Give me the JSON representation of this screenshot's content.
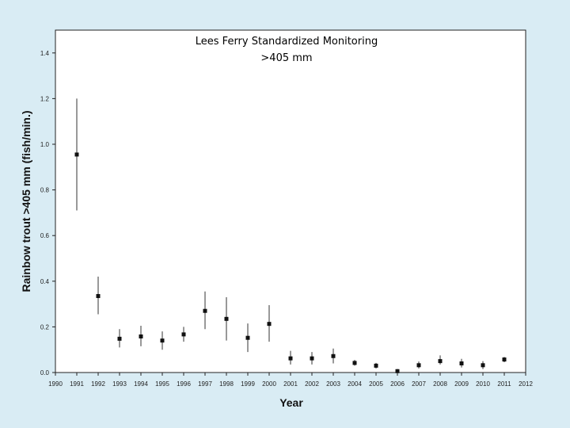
{
  "chart_data": {
    "type": "scatter",
    "title": "Lees Ferry Standardized Monitoring",
    "subtitle": ">405 mm",
    "xlabel": "Year",
    "ylabel": "Rainbow trout >405 mm (fish/min.)",
    "xlim": [
      1990,
      2012
    ],
    "ylim": [
      0,
      1.5
    ],
    "x_ticks": [
      "1990",
      "1991",
      "1992",
      "1993",
      "1994",
      "1995",
      "1996",
      "1997",
      "1998",
      "1999",
      "2000",
      "2001",
      "2002",
      "2003",
      "2004",
      "2005",
      "2006",
      "2007",
      "2008",
      "2009",
      "2010",
      "2011",
      "2012"
    ],
    "y_ticks": [
      "0.0",
      "0.2",
      "0.4",
      "0.6",
      "0.8",
      "1.0",
      "1.2",
      "1.4"
    ],
    "grid": false,
    "legend": "none",
    "series": [
      {
        "marker": "square",
        "color": "#111111",
        "points": [
          {
            "x": 1991,
            "y": 0.955,
            "low": 0.71,
            "high": 1.2
          },
          {
            "x": 1992,
            "y": 0.335,
            "low": 0.255,
            "high": 0.42
          },
          {
            "x": 1993,
            "y": 0.148,
            "low": 0.11,
            "high": 0.19
          },
          {
            "x": 1994,
            "y": 0.158,
            "low": 0.115,
            "high": 0.205
          },
          {
            "x": 1995,
            "y": 0.14,
            "low": 0.1,
            "high": 0.18
          },
          {
            "x": 1996,
            "y": 0.167,
            "low": 0.135,
            "high": 0.2
          },
          {
            "x": 1997,
            "y": 0.27,
            "low": 0.19,
            "high": 0.355
          },
          {
            "x": 1998,
            "y": 0.235,
            "low": 0.14,
            "high": 0.33
          },
          {
            "x": 1999,
            "y": 0.152,
            "low": 0.09,
            "high": 0.215
          },
          {
            "x": 2000,
            "y": 0.213,
            "low": 0.135,
            "high": 0.295
          },
          {
            "x": 2001,
            "y": 0.062,
            "low": 0.035,
            "high": 0.095
          },
          {
            "x": 2002,
            "y": 0.062,
            "low": 0.035,
            "high": 0.09
          },
          {
            "x": 2003,
            "y": 0.072,
            "low": 0.04,
            "high": 0.105
          },
          {
            "x": 2004,
            "y": 0.042,
            "low": 0.03,
            "high": 0.055
          },
          {
            "x": 2005,
            "y": 0.03,
            "low": 0.018,
            "high": 0.042
          },
          {
            "x": 2006,
            "y": 0.006,
            "low": 0.0,
            "high": 0.015
          },
          {
            "x": 2007,
            "y": 0.032,
            "low": 0.018,
            "high": 0.048
          },
          {
            "x": 2008,
            "y": 0.05,
            "low": 0.035,
            "high": 0.075
          },
          {
            "x": 2009,
            "y": 0.04,
            "low": 0.022,
            "high": 0.06
          },
          {
            "x": 2010,
            "y": 0.032,
            "low": 0.015,
            "high": 0.05
          },
          {
            "x": 2011,
            "y": 0.057,
            "low": 0.045,
            "high": 0.068
          }
        ]
      }
    ]
  }
}
